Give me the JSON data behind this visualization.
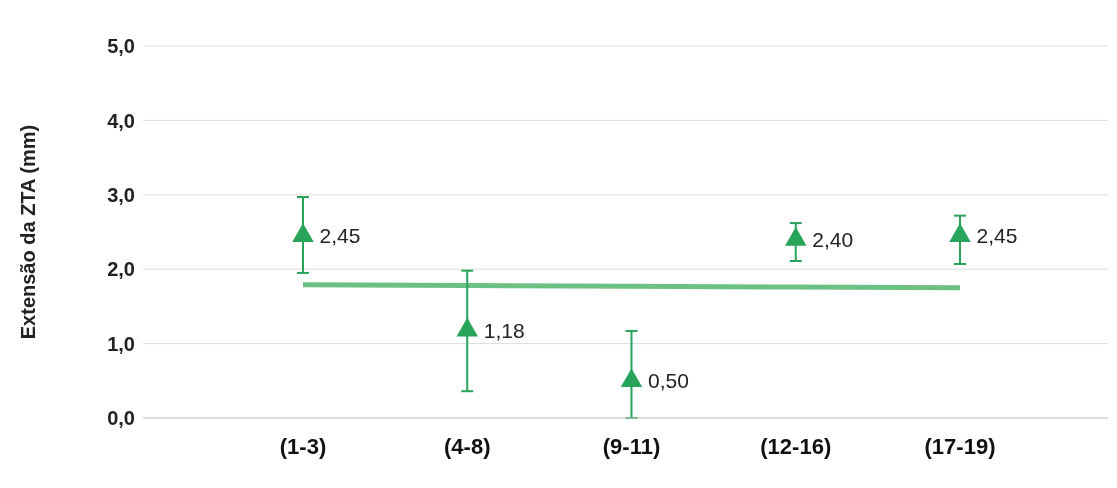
{
  "chart_data": {
    "type": "scatter",
    "ylabel": "Extensão da ZTA (mm)",
    "categories": [
      "(1-3)",
      "(4-8)",
      "(9-11)",
      "(12-16)",
      "(17-19)"
    ],
    "series": [
      {
        "color": "#27a35a",
        "values": [
          2.45,
          1.18,
          0.5,
          2.4,
          2.45
        ],
        "errors": [
          [
            1.95,
            2.97
          ],
          [
            0.36,
            1.98
          ],
          [
            0,
            1.17
          ],
          [
            2.11,
            2.62
          ],
          [
            2.07,
            2.72
          ]
        ],
        "value_labels": [
          "2,45",
          "1,18",
          "0,50",
          "2,40",
          "2,45"
        ],
        "marker": "triangle"
      },
      {
        "type": "line",
        "color": "#6cc083",
        "values": [
          1.79,
          1.78,
          1.77,
          1.76,
          1.75
        ],
        "marker": "none"
      }
    ],
    "ylim": [
      0,
      5
    ],
    "yticks": [
      {
        "value": 0,
        "label": "0,0"
      },
      {
        "value": 1,
        "label": "1,0"
      },
      {
        "value": 2,
        "label": "2,0"
      },
      {
        "value": 3,
        "label": "3,0"
      },
      {
        "value": 4,
        "label": "4,0"
      },
      {
        "value": 5,
        "label": "5,0"
      }
    ],
    "grid": "y"
  }
}
